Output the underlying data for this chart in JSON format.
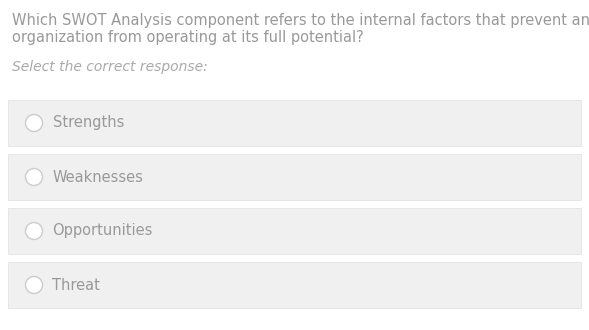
{
  "question_line1": "Which SWOT Analysis component refers to the internal factors that prevent an",
  "question_line2": "organization from operating at its full potential?",
  "instruction": "Select the correct response:",
  "options": [
    "Strengths",
    "Weaknesses",
    "Opportunities",
    "Threat"
  ],
  "bg_color": "#ffffff",
  "option_bg_color": "#f0f0f0",
  "question_text_color": "#999999",
  "instruction_text_color": "#aaaaaa",
  "option_text_color": "#999999",
  "radio_edge_color": "#cccccc",
  "radio_fill_color": "#f0f0f0",
  "option_border_color": "#e0e0e0",
  "question_fontsize": 10.5,
  "instruction_fontsize": 10.0,
  "option_fontsize": 10.5,
  "fig_width": 5.89,
  "fig_height": 3.3,
  "dpi": 100
}
